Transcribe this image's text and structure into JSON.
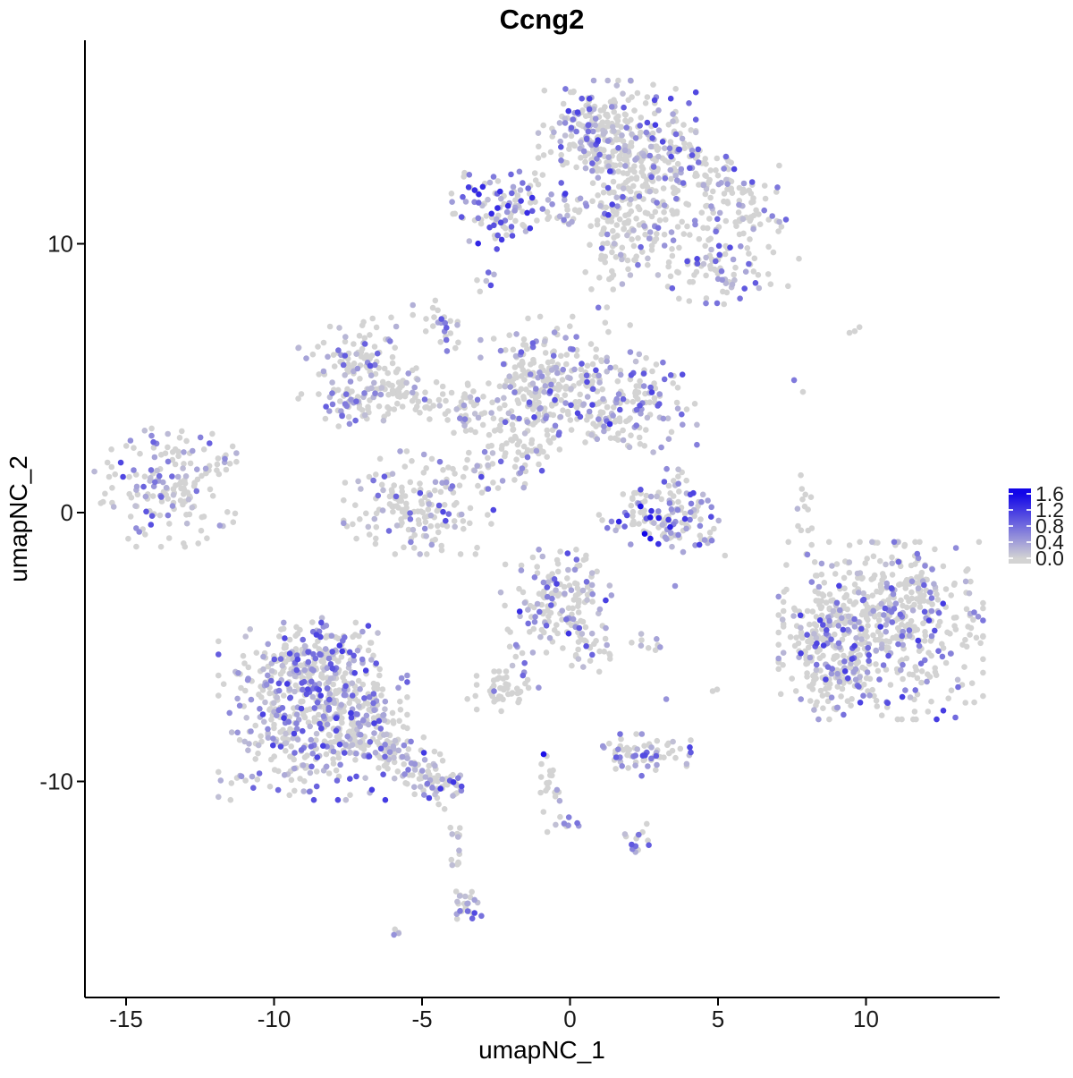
{
  "title": "Ccng2",
  "chart_data": {
    "type": "scatter",
    "title": "Ccng2",
    "xlabel": "umapNC_1",
    "ylabel": "umapNC_2",
    "xlim": [
      -16.4,
      14.6
    ],
    "ylim": [
      -18.1,
      17.6
    ],
    "x_ticks": [
      -15,
      -10,
      -5,
      0,
      5,
      10
    ],
    "y_ticks": [
      -10,
      0,
      10
    ],
    "grid": false,
    "legend": {
      "position": "right",
      "tick_labels": [
        "1.6",
        "1.2",
        "0.8",
        "0.4",
        "0.0"
      ],
      "vmin": 0.0,
      "vmax": 1.6
    },
    "colors": {
      "low": "#D3D3D3",
      "high": "#1205E8",
      "background": "#FFFFFF",
      "axis": "#000000"
    },
    "point_radius": 3.3,
    "seed": 11,
    "clusters": [
      {
        "name": "top-head-core",
        "x": 1.59,
        "y": 13.74,
        "sx": 1.21,
        "sy": 1.06,
        "angle": 0,
        "n": 270,
        "pos": 0.32,
        "vmax": 1.2
      },
      {
        "name": "top-head-upper",
        "x": 0.68,
        "y": 14.57,
        "sx": 0.6,
        "sy": 0.6,
        "angle": 0,
        "n": 70,
        "pos": 0.3,
        "vmax": 1.2
      },
      {
        "name": "top-head-lower",
        "x": 2.34,
        "y": 11.41,
        "sx": 0.91,
        "sy": 1.0,
        "angle": 0,
        "n": 150,
        "pos": 0.3,
        "vmax": 1.2
      },
      {
        "name": "top-arm-upper-right",
        "x": 4.3,
        "y": 12.58,
        "sx": 1.21,
        "sy": 0.67,
        "angle": -25,
        "n": 110,
        "pos": 0.28,
        "vmax": 1.2
      },
      {
        "name": "top-arm-tip",
        "x": 5.82,
        "y": 11.25,
        "sx": 0.66,
        "sy": 0.53,
        "angle": -30,
        "n": 50,
        "pos": 0.3,
        "vmax": 1.2
      },
      {
        "name": "top-right-lower-blob",
        "x": 4.91,
        "y": 9.08,
        "sx": 1.15,
        "sy": 0.67,
        "angle": -20,
        "n": 100,
        "pos": 0.28,
        "vmax": 1.1
      },
      {
        "name": "top-trail-below-head",
        "x": 1.44,
        "y": 8.92,
        "sx": 0.45,
        "sy": 1.0,
        "angle": 0,
        "n": 35,
        "pos": 0.2,
        "vmax": 1.0
      },
      {
        "name": "top-neck-chain",
        "x": -0.47,
        "y": 11.18,
        "sx": 0.66,
        "sy": 0.33,
        "angle": 0,
        "n": 22,
        "pos": 0.25,
        "vmax": 1.0
      },
      {
        "name": "topleft-purple-cluster",
        "x": -2.19,
        "y": 11.41,
        "sx": 0.91,
        "sy": 0.73,
        "angle": 0,
        "n": 95,
        "pos": 0.6,
        "vmax": 1.4,
        "pow": 1.2
      },
      {
        "name": "topleft-dash",
        "x": -3.34,
        "y": 11.31,
        "sx": 0.3,
        "sy": 0.2,
        "angle": 0,
        "n": 8,
        "pos": 0.5,
        "vmax": 1.1
      },
      {
        "name": "purple-dots-8.7",
        "x": -2.79,
        "y": 8.68,
        "sx": 0.15,
        "sy": 0.3,
        "angle": -35,
        "n": 6,
        "pos": 0.7,
        "vmax": 1.2
      },
      {
        "name": "small-mixed-blob",
        "x": -4.52,
        "y": 7.19,
        "sx": 0.36,
        "sy": 0.4,
        "angle": 0,
        "n": 18,
        "pos": 0.45,
        "vmax": 1.1
      },
      {
        "name": "small-chain-below",
        "x": -4.09,
        "y": 6.36,
        "sx": 0.18,
        "sy": 0.33,
        "angle": 0,
        "n": 8,
        "pos": 0.4,
        "vmax": 1.0
      },
      {
        "name": "mid-left-blob",
        "x": -7.18,
        "y": 5.49,
        "sx": 0.91,
        "sy": 1.0,
        "angle": 0,
        "n": 120,
        "pos": 0.3,
        "vmax": 1.1
      },
      {
        "name": "mid-left-arm",
        "x": -6.72,
        "y": 4.09,
        "sx": 0.85,
        "sy": 0.47,
        "angle": 20,
        "n": 55,
        "pos": 0.25,
        "vmax": 1.0
      },
      {
        "name": "mid-diag-chain",
        "x": -5.06,
        "y": 4.36,
        "sx": 0.91,
        "sy": 0.47,
        "angle": -15,
        "n": 40,
        "pos": 0.2,
        "vmax": 1.0
      },
      {
        "name": "mid-chain-2",
        "x": -3.55,
        "y": 3.93,
        "sx": 0.66,
        "sy": 0.4,
        "angle": 10,
        "n": 30,
        "pos": 0.2,
        "vmax": 1.0
      },
      {
        "name": "mid-central-blob",
        "x": -0.89,
        "y": 5.09,
        "sx": 0.97,
        "sy": 1.0,
        "angle": 0,
        "n": 190,
        "pos": 0.35,
        "vmax": 1.2
      },
      {
        "name": "mid-central-south",
        "x": -1.13,
        "y": 3.43,
        "sx": 0.76,
        "sy": 0.6,
        "angle": 0,
        "n": 60,
        "pos": 0.25,
        "vmax": 1.1
      },
      {
        "name": "mid-right-blob",
        "x": 1.89,
        "y": 4.16,
        "sx": 1.09,
        "sy": 0.87,
        "angle": 0,
        "n": 170,
        "pos": 0.4,
        "vmax": 1.3
      },
      {
        "name": "mid-between-sparse",
        "x": -2.46,
        "y": 3.09,
        "sx": 0.76,
        "sy": 0.73,
        "angle": 0,
        "n": 40,
        "pos": 0.15,
        "vmax": 1.0
      },
      {
        "name": "mid-below-sparse",
        "x": -1.43,
        "y": 1.76,
        "sx": 0.45,
        "sy": 0.5,
        "angle": 0,
        "n": 15,
        "pos": 0.2,
        "vmax": 1.0
      },
      {
        "name": "far-left-cluster",
        "x": -13.67,
        "y": 0.93,
        "sx": 1.09,
        "sy": 1.0,
        "angle": 0,
        "n": 165,
        "pos": 0.35,
        "vmax": 1.1
      },
      {
        "name": "far-left-ne-dots",
        "x": -11.77,
        "y": 2.26,
        "sx": 0.36,
        "sy": 0.4,
        "angle": 0,
        "n": 10,
        "pos": 0.3,
        "vmax": 1.0
      },
      {
        "name": "bowl-cluster",
        "x": -5.12,
        "y": 0.37,
        "sx": 1.15,
        "sy": 0.87,
        "angle": 0,
        "n": 170,
        "pos": 0.25,
        "vmax": 1.1
      },
      {
        "name": "bowl-ne-chain",
        "x": -2.58,
        "y": 1.5,
        "sx": 0.54,
        "sy": 0.4,
        "angle": -35,
        "n": 16,
        "pos": 0.35,
        "vmax": 1.1
      },
      {
        "name": "crescent-arc",
        "x": 3.34,
        "y": -0.5,
        "sx": 1.09,
        "sy": 0.43,
        "angle": -10,
        "n": 95,
        "pos": 0.5,
        "vmax": 1.6,
        "pow": 1.3
      },
      {
        "name": "crescent-left-tip",
        "x": 2.13,
        "y": 0.43,
        "sx": 0.3,
        "sy": 0.33,
        "angle": 0,
        "n": 12,
        "pos": 0.4,
        "vmax": 1.2
      },
      {
        "name": "crescent-upper-blob",
        "x": 3.46,
        "y": 0.8,
        "sx": 0.33,
        "sy": 0.47,
        "angle": 0,
        "n": 28,
        "pos": 0.6,
        "vmax": 1.3
      },
      {
        "name": "crescent-right-tip",
        "x": 4.37,
        "y": 0.27,
        "sx": 0.24,
        "sy": 0.33,
        "angle": 0,
        "n": 10,
        "pos": 0.5,
        "vmax": 1.2
      },
      {
        "name": "right-sparse-column",
        "x": 7.84,
        "y": 0.1,
        "sx": 0.18,
        "sy": 0.73,
        "angle": 0,
        "n": 12,
        "pos": 0.35,
        "vmax": 1.0
      },
      {
        "name": "bigright-core",
        "x": 10.5,
        "y": -4.39,
        "sx": 1.57,
        "sy": 1.5,
        "angle": 0,
        "n": 520,
        "pos": 0.3,
        "vmax": 1.2
      },
      {
        "name": "bigright-west-lobe",
        "x": 8.53,
        "y": -4.39,
        "sx": 0.6,
        "sy": 0.93,
        "angle": 0,
        "n": 90,
        "pos": 0.35,
        "vmax": 1.2
      },
      {
        "name": "bigright-south-tip",
        "x": 8.99,
        "y": -6.39,
        "sx": 0.54,
        "sy": 0.47,
        "angle": 0,
        "n": 50,
        "pos": 0.3,
        "vmax": 1.1
      },
      {
        "name": "bigright-ne-edge",
        "x": 11.86,
        "y": -2.56,
        "sx": 0.76,
        "sy": 0.5,
        "angle": 0,
        "n": 45,
        "pos": 0.25,
        "vmax": 1.1
      },
      {
        "name": "midlow-head",
        "x": -0.47,
        "y": -3.29,
        "sx": 0.85,
        "sy": 0.87,
        "angle": 0,
        "n": 150,
        "pos": 0.35,
        "vmax": 1.3
      },
      {
        "name": "midlow-arm-se",
        "x": 0.74,
        "y": -4.96,
        "sx": 0.48,
        "sy": 0.47,
        "angle": 0,
        "n": 30,
        "pos": 0.3,
        "vmax": 1.1
      },
      {
        "name": "midlow-chain-sw",
        "x": -1.59,
        "y": -5.49,
        "sx": 0.18,
        "sy": 0.53,
        "angle": 15,
        "n": 12,
        "pos": 0.5,
        "vmax": 1.1
      },
      {
        "name": "pair-east",
        "x": 2.79,
        "y": -4.79,
        "sx": 0.36,
        "sy": 0.17,
        "angle": 0,
        "n": 9,
        "pos": 0.5,
        "vmax": 1.1
      },
      {
        "name": "gray-small-cluster",
        "x": -2.28,
        "y": -6.72,
        "sx": 0.54,
        "sy": 0.37,
        "angle": 0,
        "n": 45,
        "pos": 0.06,
        "vmax": 0.8
      },
      {
        "name": "bottomleft-core",
        "x": -8.69,
        "y": -7.39,
        "sx": 1.45,
        "sy": 1.5,
        "angle": 0,
        "n": 520,
        "pos": 0.45,
        "vmax": 1.2
      },
      {
        "name": "bottomleft-top-lobe",
        "x": -8.69,
        "y": -5.39,
        "sx": 0.76,
        "sy": 0.67,
        "angle": 0,
        "n": 110,
        "pos": 0.45,
        "vmax": 1.2
      },
      {
        "name": "bottomleft-east-lobe",
        "x": -7.18,
        "y": -7.89,
        "sx": 0.66,
        "sy": 0.73,
        "angle": 0,
        "n": 90,
        "pos": 0.4,
        "vmax": 1.2
      },
      {
        "name": "bottomleft-tail-1",
        "x": -5.82,
        "y": -9.05,
        "sx": 0.79,
        "sy": 0.47,
        "angle": -30,
        "n": 70,
        "pos": 0.4,
        "vmax": 1.2
      },
      {
        "name": "bottomleft-tail-2",
        "x": -4.52,
        "y": -10.05,
        "sx": 0.48,
        "sy": 0.43,
        "angle": -35,
        "n": 55,
        "pos": 0.5,
        "vmax": 1.3
      },
      {
        "name": "tail-sparse-chain",
        "x": -3.91,
        "y": -11.81,
        "sx": 0.15,
        "sy": 0.6,
        "angle": 0,
        "n": 9,
        "pos": 0.3,
        "vmax": 1.0
      },
      {
        "name": "tail-lower-chain",
        "x": -3.55,
        "y": -13.88,
        "sx": 0.21,
        "sy": 0.67,
        "angle": 10,
        "n": 20,
        "pos": 0.35,
        "vmax": 1.1
      },
      {
        "name": "tail-end-blob",
        "x": -3.49,
        "y": -14.61,
        "sx": 0.27,
        "sy": 0.23,
        "angle": 0,
        "n": 12,
        "pos": 0.4,
        "vmax": 1.1
      },
      {
        "name": "bottom-dash",
        "x": -5.97,
        "y": -15.64,
        "sx": 0.18,
        "sy": 0.13,
        "angle": -30,
        "n": 4,
        "pos": 0.8,
        "vmax": 0.9
      },
      {
        "name": "center-chain-down",
        "x": -0.59,
        "y": -10.22,
        "sx": 0.21,
        "sy": 0.73,
        "angle": 10,
        "n": 20,
        "pos": 0.25,
        "vmax": 1.0
      },
      {
        "name": "center-chain-bottom",
        "x": -0.17,
        "y": -11.48,
        "sx": 0.21,
        "sy": 0.27,
        "angle": 0,
        "n": 8,
        "pos": 0.6,
        "vmax": 1.1
      },
      {
        "name": "bottom-mid-cluster",
        "x": 2.34,
        "y": -9.05,
        "sx": 0.79,
        "sy": 0.37,
        "angle": 0,
        "n": 70,
        "pos": 0.35,
        "vmax": 1.2
      },
      {
        "name": "y-clusterlet",
        "x": 2.25,
        "y": -12.21,
        "sx": 0.27,
        "sy": 0.33,
        "angle": 0,
        "n": 16,
        "pos": 0.5,
        "vmax": 1.1
      }
    ],
    "singles": [
      {
        "x": -0.89,
        "y": -8.99,
        "v": 1.5
      },
      {
        "x": 7.57,
        "y": 4.93,
        "v": 0.7
      },
      {
        "x": 7.87,
        "y": 4.49,
        "v": 0
      },
      {
        "x": 9.44,
        "y": 6.69,
        "v": 0
      },
      {
        "x": 9.62,
        "y": 6.75,
        "v": 0
      },
      {
        "x": 9.78,
        "y": 6.9,
        "v": 0
      },
      {
        "x": 8.02,
        "y": -1.56,
        "v": 0.6
      },
      {
        "x": 3.55,
        "y": -2.73,
        "v": 0.5
      },
      {
        "x": 4.82,
        "y": -6.64,
        "v": 0
      },
      {
        "x": 4.97,
        "y": -6.58,
        "v": 0
      },
      {
        "x": 3.25,
        "y": -6.94,
        "v": 0.5
      }
    ]
  }
}
